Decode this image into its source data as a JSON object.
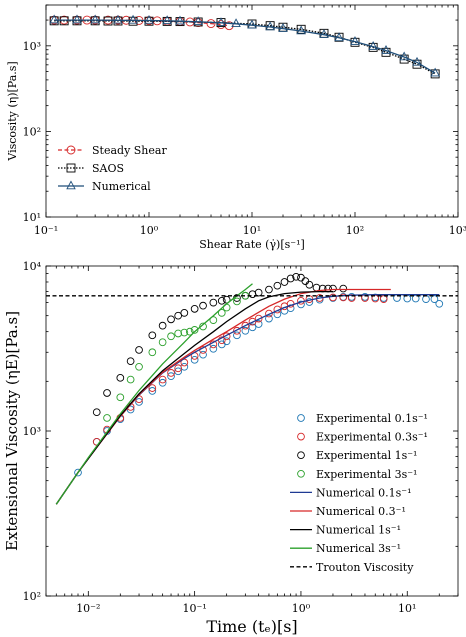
{
  "chart_data": [
    {
      "type": "line",
      "xscale": "log",
      "yscale": "log",
      "xlim": [
        0.1,
        1000
      ],
      "ylim": [
        10,
        3000
      ],
      "xlabel": "Shear Rate (γ̇)[s⁻¹]",
      "ylabel": "Viscosity (η)[Pa.s]",
      "xticklabels": [
        "10⁻¹",
        "10⁰",
        "10¹",
        "10²",
        "10³"
      ],
      "yticklabels": [
        "10¹",
        "10²",
        "10³"
      ],
      "legend_position": "lower-left",
      "series": [
        {
          "name": "Steady Shear",
          "color": "#d62728",
          "style": "dashed-circle",
          "x": [
            0.12,
            0.15,
            0.2,
            0.25,
            0.3,
            0.4,
            0.5,
            0.6,
            0.8,
            1.0,
            1.2,
            1.5,
            2.0,
            2.5,
            3.0,
            4.0,
            5.0,
            6.0
          ],
          "y": [
            2000,
            2000,
            2000,
            2000,
            2000,
            2000,
            2000,
            1990,
            1980,
            1970,
            1960,
            1940,
            1920,
            1900,
            1870,
            1820,
            1770,
            1720
          ]
        },
        {
          "name": "SAOS",
          "color": "#000000",
          "style": "dotted-square",
          "x": [
            0.12,
            0.15,
            0.2,
            0.3,
            0.4,
            0.5,
            0.7,
            1.0,
            1.5,
            2.0,
            3.0,
            5.0,
            10,
            15,
            20,
            30,
            50,
            70,
            100,
            150,
            200,
            300,
            400,
            600
          ],
          "y": [
            1960,
            1960,
            1960,
            1960,
            1950,
            1950,
            1940,
            1940,
            1930,
            1920,
            1900,
            1870,
            1800,
            1720,
            1650,
            1560,
            1400,
            1260,
            1100,
            960,
            840,
            700,
            610,
            470
          ]
        },
        {
          "name": "Numerical",
          "color": "#1f4e79",
          "style": "solid-triangle",
          "x": [
            0.12,
            0.2,
            0.3,
            0.5,
            0.7,
            1.0,
            1.5,
            2.0,
            3.0,
            5.0,
            7.0,
            10,
            15,
            20,
            30,
            50,
            70,
            100,
            150,
            200,
            300,
            400,
            600
          ],
          "y": [
            2000,
            2000,
            2000,
            1990,
            1985,
            1975,
            1960,
            1940,
            1910,
            1860,
            1810,
            1740,
            1660,
            1590,
            1490,
            1350,
            1240,
            1120,
            980,
            880,
            740,
            640,
            480
          ]
        }
      ]
    },
    {
      "type": "line",
      "xscale": "log",
      "yscale": "log",
      "xlim": [
        0.004,
        30
      ],
      "ylim": [
        100,
        10000
      ],
      "xlabel": "Time (tₑ)[s]",
      "ylabel": "Extensional Viscosity (ηE)[Pa.s]",
      "xticklabels": [
        "10⁻²",
        "10⁻¹",
        "10⁰",
        "10¹"
      ],
      "yticklabels": [
        "10²",
        "10³",
        "10⁴"
      ],
      "legend_position": "lower-right",
      "series": [
        {
          "name": "Experimental 0.1s⁻¹",
          "color": "#1f77b4",
          "style": "circle",
          "x": [
            0.008,
            0.012,
            0.015,
            0.02,
            0.025,
            0.03,
            0.04,
            0.05,
            0.06,
            0.07,
            0.08,
            0.1,
            0.12,
            0.15,
            0.18,
            0.2,
            0.25,
            0.3,
            0.35,
            0.4,
            0.5,
            0.6,
            0.7,
            0.8,
            1.0,
            1.2,
            1.5,
            2.0,
            2.5,
            3.0,
            4.0,
            5.0,
            6.0,
            8.0,
            10,
            12,
            15,
            18,
            20
          ],
          "y": [
            560,
            860,
            1000,
            1180,
            1350,
            1500,
            1750,
            1960,
            2150,
            2300,
            2450,
            2700,
            2900,
            3150,
            3350,
            3500,
            3800,
            4050,
            4250,
            4450,
            4800,
            5100,
            5350,
            5550,
            5850,
            6050,
            6250,
            6400,
            6500,
            6500,
            6500,
            6450,
            6400,
            6400,
            6350,
            6350,
            6300,
            6300,
            5900
          ]
        },
        {
          "name": "Experimental 0.3s⁻¹",
          "color": "#d62728",
          "style": "circle",
          "x": [
            0.012,
            0.015,
            0.02,
            0.025,
            0.03,
            0.04,
            0.05,
            0.06,
            0.07,
            0.08,
            0.1,
            0.12,
            0.15,
            0.18,
            0.2,
            0.25,
            0.3,
            0.35,
            0.4,
            0.5,
            0.6,
            0.7,
            0.8,
            1.0,
            1.2,
            1.5,
            2.0,
            2.5,
            3.0,
            4.0,
            5.0,
            6.0
          ],
          "y": [
            860,
            1020,
            1200,
            1400,
            1560,
            1820,
            2050,
            2250,
            2400,
            2600,
            2850,
            3100,
            3350,
            3550,
            3750,
            4050,
            4350,
            4600,
            4800,
            5150,
            5450,
            5700,
            5900,
            6150,
            6300,
            6400,
            6450,
            6450,
            6400,
            6400,
            6350,
            6300
          ]
        },
        {
          "name": "Experimental 1s⁻¹",
          "color": "#000000",
          "style": "circle",
          "x": [
            0.012,
            0.015,
            0.02,
            0.025,
            0.03,
            0.04,
            0.05,
            0.06,
            0.07,
            0.08,
            0.1,
            0.12,
            0.15,
            0.18,
            0.2,
            0.25,
            0.3,
            0.35,
            0.4,
            0.5,
            0.6,
            0.7,
            0.8,
            0.9,
            1.0,
            1.1,
            1.2,
            1.4,
            1.6,
            1.8,
            2.0,
            2.5
          ],
          "y": [
            1300,
            1700,
            2100,
            2650,
            3100,
            3800,
            4350,
            4750,
            5000,
            5200,
            5500,
            5750,
            6000,
            6150,
            6250,
            6400,
            6600,
            6750,
            6900,
            7200,
            7600,
            8000,
            8400,
            8600,
            8500,
            8100,
            7700,
            7400,
            7300,
            7300,
            7300,
            7300
          ]
        },
        {
          "name": "Experimental 3s⁻¹",
          "color": "#2ca02c",
          "style": "circle",
          "x": [
            0.015,
            0.02,
            0.025,
            0.03,
            0.04,
            0.05,
            0.06,
            0.07,
            0.08,
            0.09,
            0.1,
            0.12,
            0.15,
            0.18,
            0.2,
            0.25,
            0.3
          ],
          "y": [
            1200,
            1600,
            2050,
            2450,
            3000,
            3450,
            3750,
            3900,
            3950,
            4000,
            4100,
            4300,
            4700,
            5200,
            5600,
            6100,
            6600
          ]
        },
        {
          "name": "Numerical 0.1s⁻¹",
          "color": "#1f3a93",
          "style": "solid",
          "x": [
            0.005,
            0.008,
            0.01,
            0.02,
            0.03,
            0.05,
            0.08,
            0.1,
            0.15,
            0.2,
            0.3,
            0.5,
            0.7,
            1.0,
            1.5,
            2.0,
            3.0,
            5.0,
            10,
            20
          ],
          "y": [
            360,
            560,
            680,
            1230,
            1650,
            2250,
            2750,
            3000,
            3450,
            3800,
            4350,
            5100,
            5600,
            6050,
            6400,
            6550,
            6650,
            6700,
            6700,
            6700
          ]
        },
        {
          "name": "Numerical 0.3⁻¹",
          "color": "#d62728",
          "style": "solid",
          "x": [
            0.005,
            0.008,
            0.01,
            0.02,
            0.03,
            0.05,
            0.08,
            0.1,
            0.15,
            0.2,
            0.3,
            0.5,
            0.7,
            1.0,
            1.5,
            2.0,
            3.0,
            5.0,
            7.0
          ],
          "y": [
            360,
            560,
            680,
            1230,
            1660,
            2270,
            2800,
            3080,
            3600,
            4000,
            4700,
            5700,
            6300,
            6800,
            7100,
            7200,
            7200,
            7200,
            7200
          ]
        },
        {
          "name": "Numerical 1s⁻¹",
          "color": "#000000",
          "style": "solid",
          "x": [
            0.005,
            0.008,
            0.01,
            0.02,
            0.03,
            0.05,
            0.08,
            0.1,
            0.15,
            0.2,
            0.3,
            0.4,
            0.5,
            0.7,
            1.0,
            1.5,
            2.0
          ],
          "y": [
            360,
            560,
            680,
            1240,
            1680,
            2320,
            2950,
            3300,
            4000,
            4600,
            5500,
            6150,
            6500,
            6800,
            6950,
            7000,
            7000
          ]
        },
        {
          "name": "Numerical 3s⁻¹",
          "color": "#2ca02c",
          "style": "solid",
          "x": [
            0.005,
            0.008,
            0.01,
            0.02,
            0.03,
            0.05,
            0.08,
            0.1,
            0.15,
            0.2,
            0.25,
            0.3,
            0.35
          ],
          "y": [
            360,
            560,
            690,
            1270,
            1760,
            2550,
            3450,
            4000,
            5000,
            5900,
            6600,
            7200,
            7800
          ]
        },
        {
          "name": "Trouton Viscosity",
          "color": "#000000",
          "style": "dashed",
          "x": [
            0.004,
            30
          ],
          "y": [
            6600,
            6600
          ]
        }
      ]
    }
  ]
}
